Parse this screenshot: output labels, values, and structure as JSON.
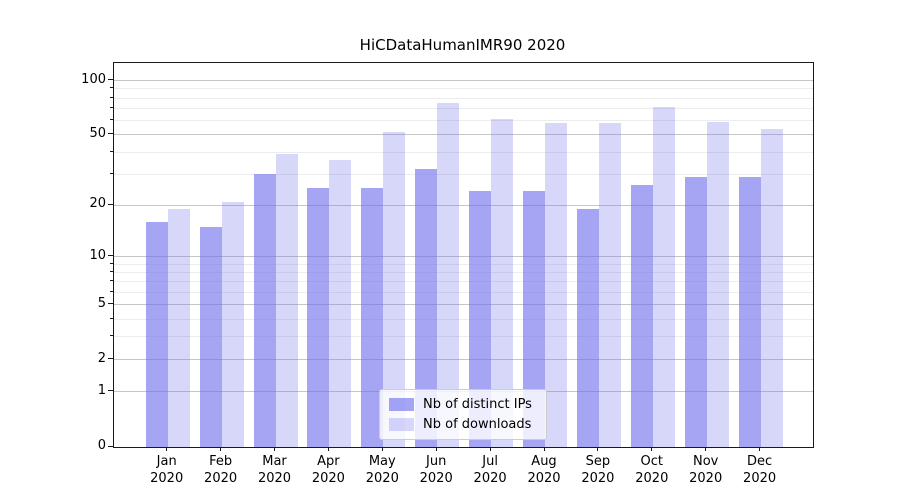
{
  "title": "HiCDataHumanIMR90 2020",
  "chart_data": {
    "type": "bar",
    "title": "HiCDataHumanIMR90 2020",
    "categories": [
      "Jan 2020",
      "Feb 2020",
      "Mar 2020",
      "Apr 2020",
      "May 2020",
      "Jun 2020",
      "Jul 2020",
      "Aug 2020",
      "Sep 2020",
      "Oct 2020",
      "Nov 2020",
      "Dec 2020"
    ],
    "series": [
      {
        "name": "Nb of distinct IPs",
        "values": [
          16,
          15,
          30,
          25,
          25,
          32,
          24,
          24,
          19,
          26,
          29,
          29
        ]
      },
      {
        "name": "Nb of downloads",
        "values": [
          19,
          21,
          39,
          36,
          52,
          75,
          61,
          58,
          58,
          71,
          59,
          54
        ]
      }
    ],
    "xlabel": "",
    "ylabel": "",
    "yscale": "log1p",
    "ylim": [
      0,
      125
    ],
    "ytick_values": [
      100,
      50,
      20,
      10,
      5,
      2,
      1,
      0
    ],
    "ytick_labels": [
      "100",
      "50",
      "20",
      "10",
      "5",
      "2",
      "1",
      "0"
    ],
    "minor_gridline_values": [
      3,
      4,
      6,
      7,
      8,
      9,
      30,
      40,
      60,
      70,
      80,
      90
    ],
    "grid": "horizontal, minor and major",
    "legend_position": "lower center"
  },
  "legend": {
    "items": [
      {
        "label": "Nb of distinct IPs"
      },
      {
        "label": "Nb of downloads"
      }
    ]
  },
  "colors": {
    "bar_base": "#6e6eee",
    "bar_dark_alpha": 0.62,
    "bar_light_alpha": 0.28,
    "bar_dark_rendered": "#a9a9f5",
    "bar_light_rendered": "#d8d8f8",
    "grid_minor": "#ececec",
    "grid_major": "#c6c6c6",
    "spine": "#1a1a1a",
    "background": "#ffffff"
  }
}
